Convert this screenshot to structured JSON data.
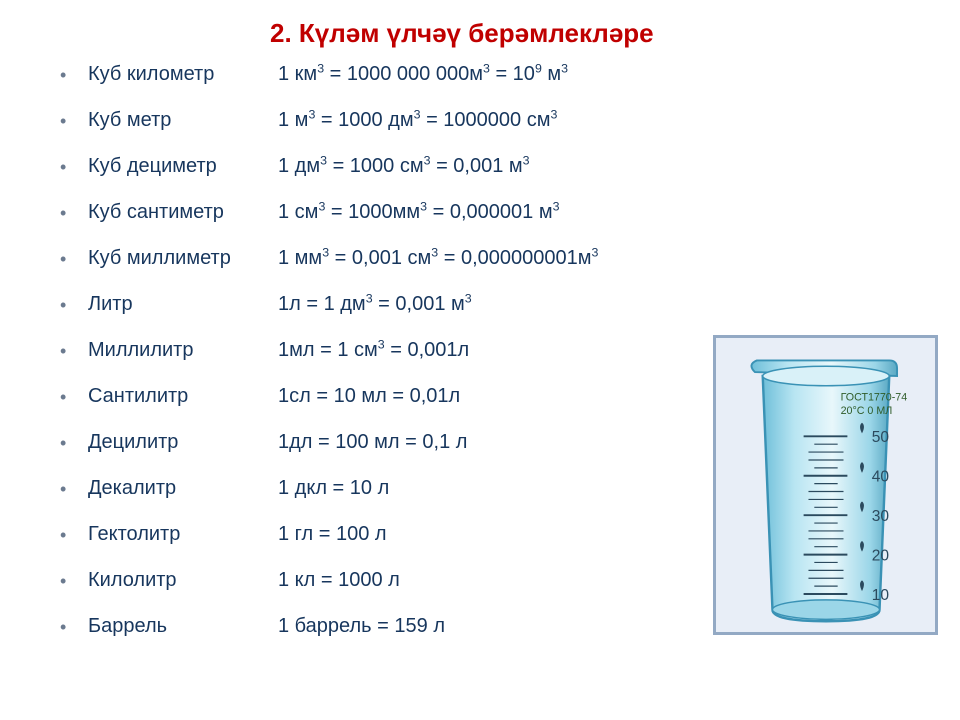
{
  "title": "2.  Күләм үлчәү берәмлекләре",
  "colors": {
    "title": "#c00000",
    "text": "#17365d",
    "bullet": "#6b7a8f",
    "frameBorder": "#93a9c4",
    "frameFill": "#e8eef7",
    "beakerBody": "#8cd1e6",
    "beakerEdge": "#3a92b5",
    "beakerInner": "#c9ecf5",
    "gostText": "#2f5c2a"
  },
  "rows": [
    {
      "label": "Куб километр",
      "eq": "1 км<sup>3</sup> = 1000 000 000м<sup>3</sup> = 10<sup>9</sup> м<sup>3</sup>"
    },
    {
      "label": "Куб метр",
      "eq": "1 м<sup>3</sup> = 1000 дм<sup>3</sup> = 1000000 см<sup>3</sup>"
    },
    {
      "label": "Куб дециметр",
      "eq": "1 дм<sup>3</sup>  = 1000 см<sup>3</sup> = 0,001 м<sup>3</sup>"
    },
    {
      "label": "Куб сантиметр",
      "eq": "1 см<sup>3</sup> = 1000мм<sup>3</sup> = 0,000001 м<sup>3</sup>"
    },
    {
      "label": "Куб миллиметр",
      "eq": "1 мм<sup>3</sup> = 0,001 см<sup>3</sup> = 0,000000001м<sup>3</sup>"
    },
    {
      "label": "Литр",
      "eq": "1л = 1 дм<sup>3</sup> = 0,001 м<sup>3</sup>"
    },
    {
      "label": "Миллилитр",
      "eq": "1мл = 1 см<sup>3</sup> = 0,001л"
    },
    {
      "label": "Сантилитр",
      "eq": "1сл = 10 мл = 0,01л"
    },
    {
      "label": "Децилитр",
      "eq": "1дл = 100 мл = 0,1 л"
    },
    {
      "label": " Декалитр",
      "eq": "1 дкл = 10 л"
    },
    {
      "label": "Гектолитр",
      "eq": "1 гл = 100 л"
    },
    {
      "label": "Килолитр",
      "eq": "1 кл = 1000 л"
    },
    {
      "label": "Баррель",
      "eq": "1 баррель = 159 л"
    }
  ],
  "beaker": {
    "gost1": "ГОСТ1770-74",
    "gost2": "20°С 0 МЛ",
    "ticks": [
      "50",
      "40",
      "30",
      "20",
      "10"
    ]
  }
}
